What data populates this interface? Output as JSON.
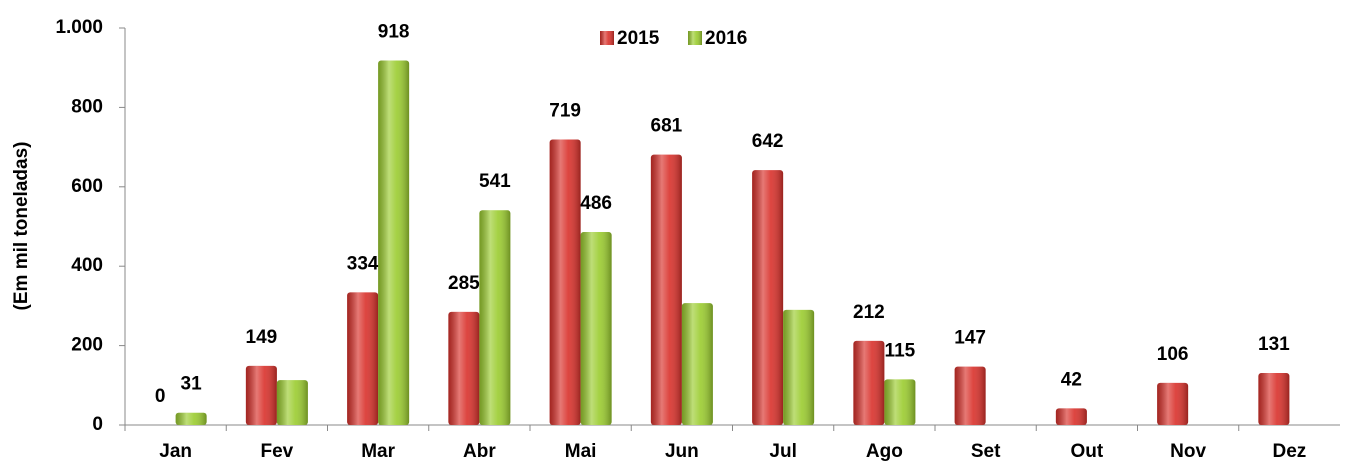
{
  "chart_data": {
    "type": "bar",
    "y_label": "(Em mil toneladas)",
    "categories": [
      "Jan",
      "Fev",
      "Mar",
      "Abr",
      "Mai",
      "Jun",
      "Jul",
      "Ago",
      "Set",
      "Out",
      "Nov",
      "Dez"
    ],
    "series": [
      {
        "name": "2015",
        "color": "#d9312b",
        "values": [
          0,
          149,
          334,
          285,
          719,
          681,
          642,
          212,
          147,
          42,
          106,
          131
        ],
        "value_labels": [
          "0",
          "149",
          "334",
          "285",
          "719",
          "681",
          "642",
          "212",
          "147",
          "42",
          "106",
          "131"
        ]
      },
      {
        "name": "2016",
        "color": "#9bcc2f",
        "values": [
          31,
          113,
          918,
          541,
          486,
          307,
          290,
          115,
          null,
          null,
          null,
          null
        ],
        "value_labels": [
          "31",
          null,
          "918",
          "541",
          "486",
          null,
          null,
          "115",
          null,
          null,
          null,
          null
        ]
      }
    ],
    "ylim": [
      0,
      1000
    ],
    "yticks": [
      0,
      200,
      400,
      600,
      800,
      {
        "value": 1000,
        "label": "1.000"
      }
    ],
    "grid": false,
    "legend": "top"
  }
}
